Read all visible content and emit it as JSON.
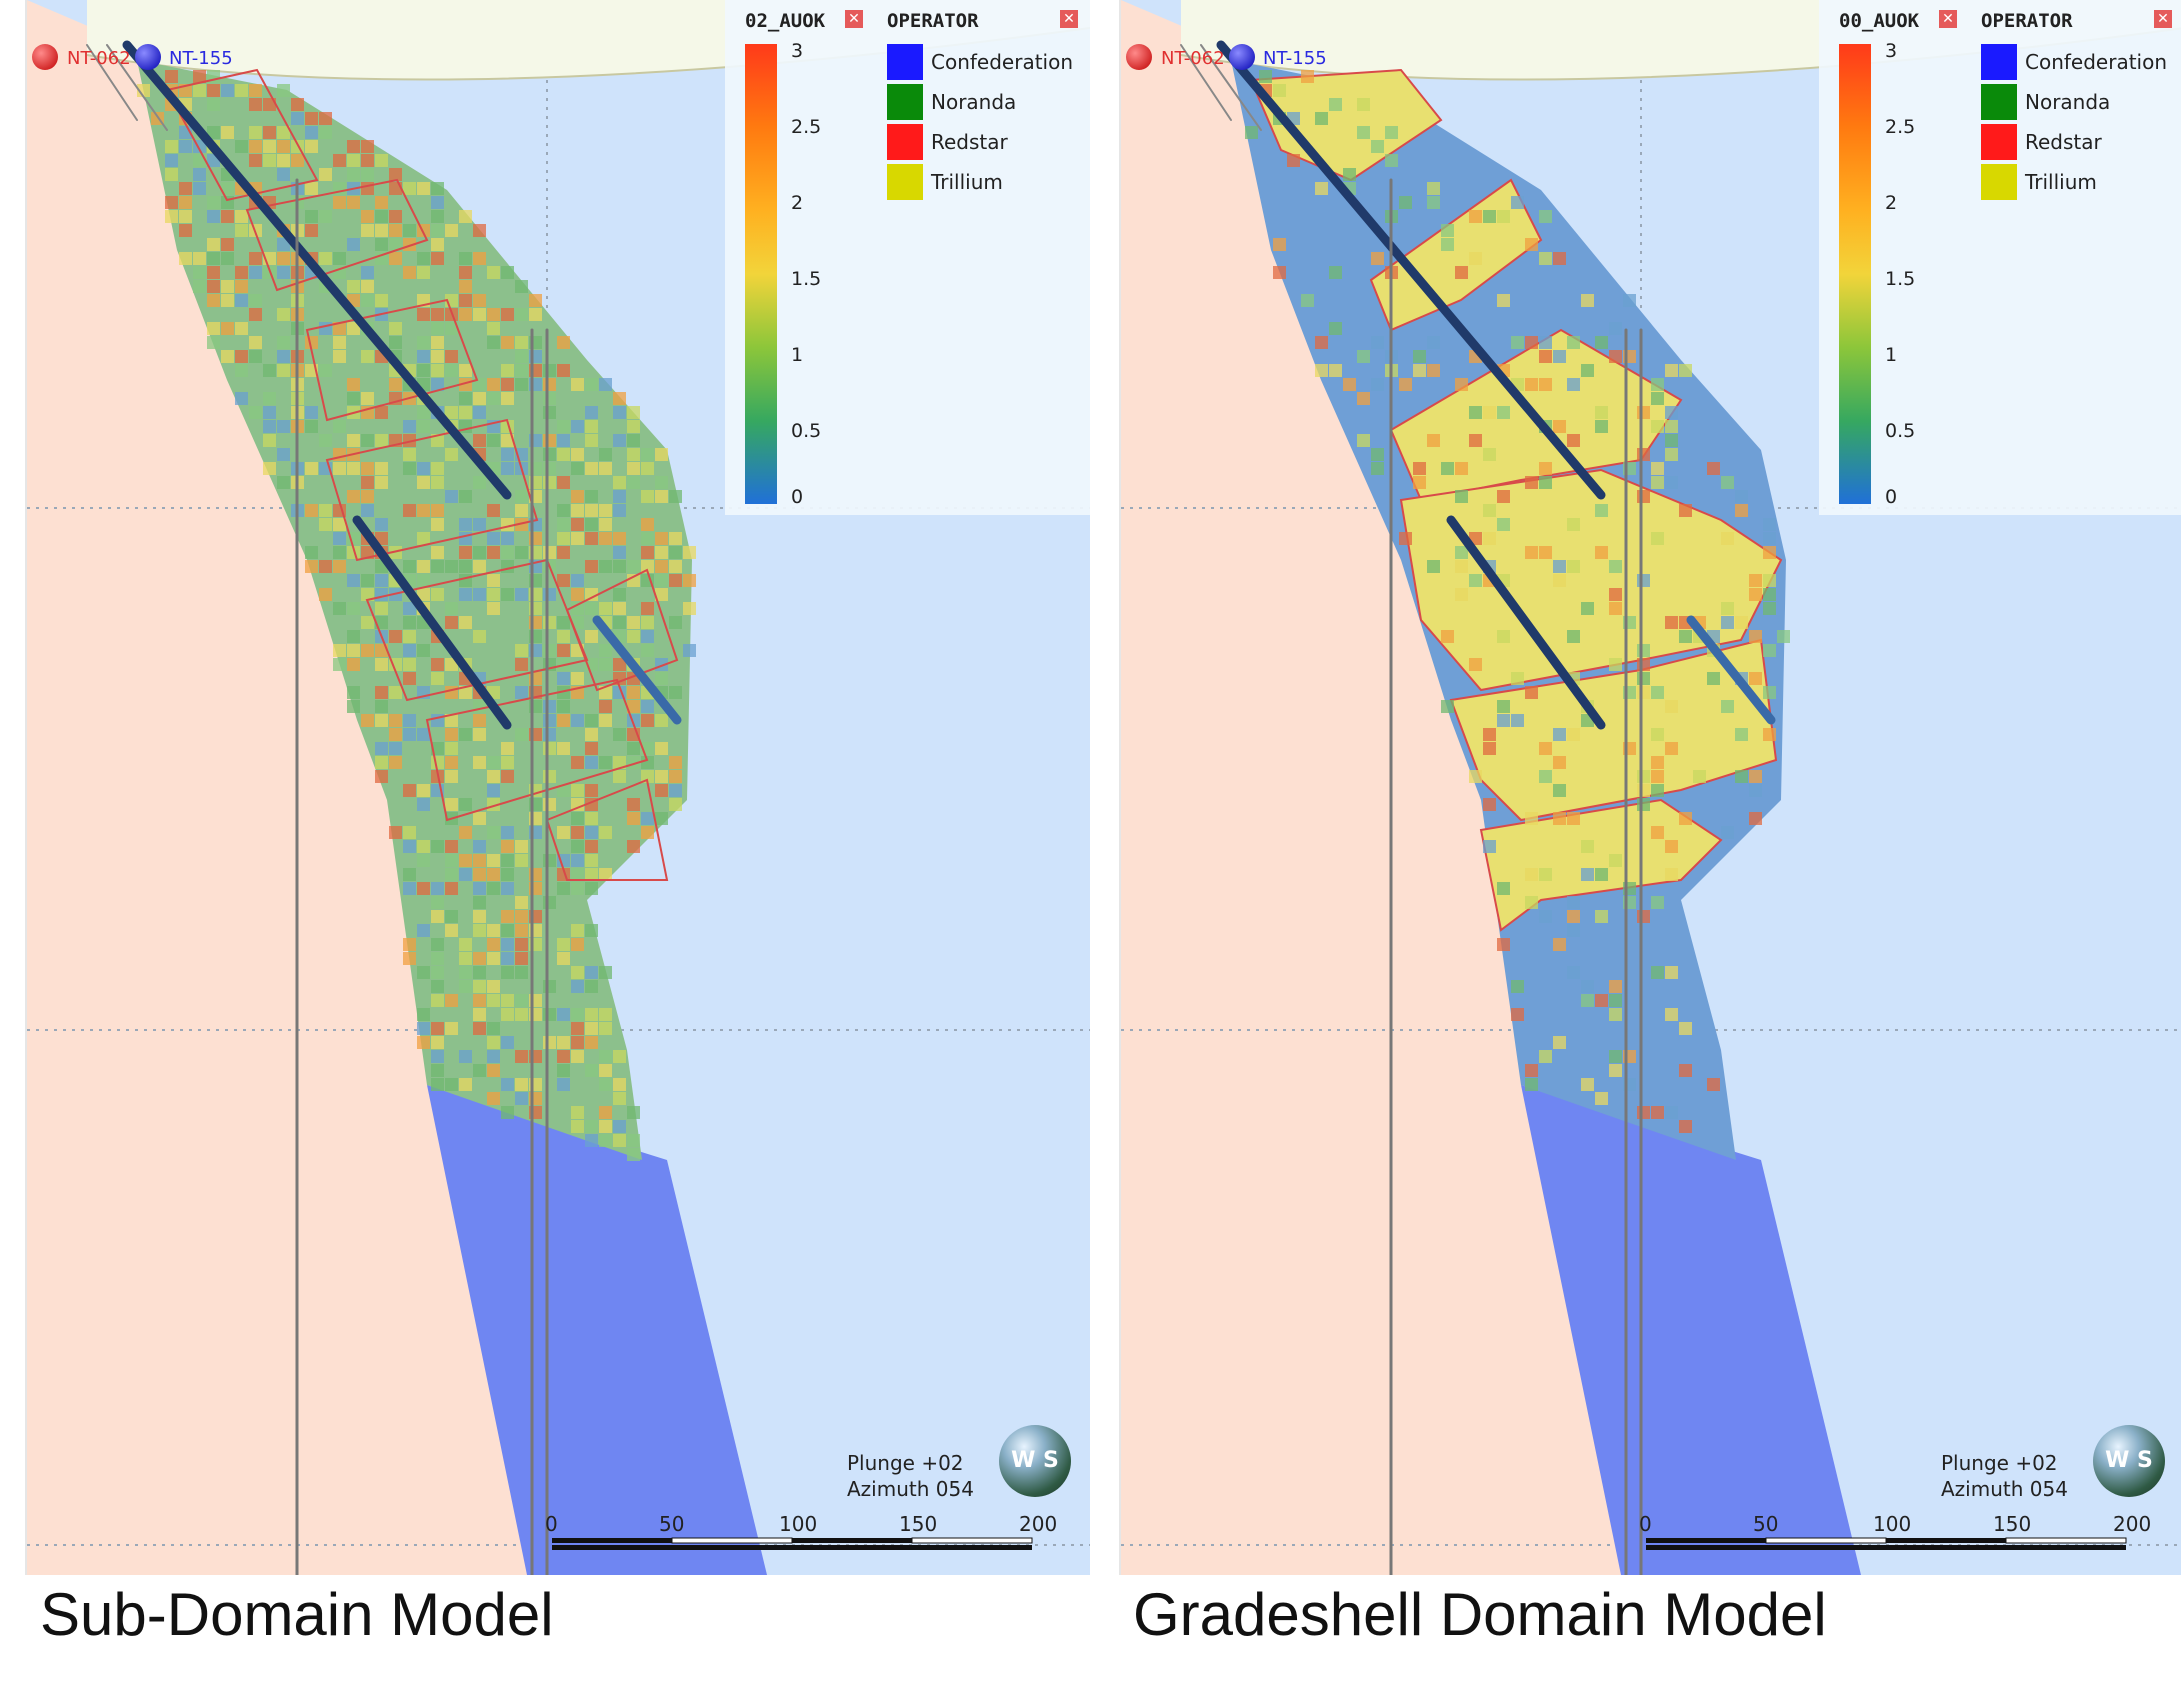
{
  "panels": [
    {
      "caption": "Sub-Domain Model",
      "grade_legend": {
        "title": "02_AUOK",
        "ticks": [
          "3",
          "2.5",
          "2",
          "1.5",
          "1",
          "0.5",
          "0"
        ]
      },
      "operator_legend": {
        "title": "OPERATOR",
        "items": [
          {
            "label": "Confederation",
            "color": "#1a1aff"
          },
          {
            "label": "Noranda",
            "color": "#0a8a0a"
          },
          {
            "label": "Redstar",
            "color": "#ff1a1a"
          },
          {
            "label": "Trillium",
            "color": "#d8d800"
          }
        ]
      },
      "holes": [
        "NT-062",
        "NT-155"
      ],
      "view": {
        "plunge": "Plunge +02",
        "azimuth": "Azimuth 054"
      },
      "scale_ticks": [
        "0",
        "50",
        "100",
        "150",
        "200"
      ],
      "globe_text": "W S"
    },
    {
      "caption": "Gradeshell Domain Model",
      "grade_legend": {
        "title": "00_AUOK",
        "ticks": [
          "3",
          "2.5",
          "2",
          "1.5",
          "1",
          "0.5",
          "0"
        ]
      },
      "operator_legend": {
        "title": "OPERATOR",
        "items": [
          {
            "label": "Confederation",
            "color": "#1a1aff"
          },
          {
            "label": "Noranda",
            "color": "#0a8a0a"
          },
          {
            "label": "Redstar",
            "color": "#ff1a1a"
          },
          {
            "label": "Trillium",
            "color": "#d8d800"
          }
        ]
      },
      "holes": [
        "NT-062",
        "NT-155"
      ],
      "view": {
        "plunge": "Plunge +02",
        "azimuth": "Azimuth 054"
      },
      "scale_ticks": [
        "0",
        "50",
        "100",
        "150",
        "200"
      ],
      "globe_text": "W S"
    }
  ],
  "colors": {
    "background_right": "#cfe3fb",
    "background_left": "#fde0d2",
    "deep_domain": "#6f86f2",
    "upper_domain": "#8cbcd8",
    "domain_outline": "#d84a4a",
    "drillhole": "#203a6a"
  }
}
